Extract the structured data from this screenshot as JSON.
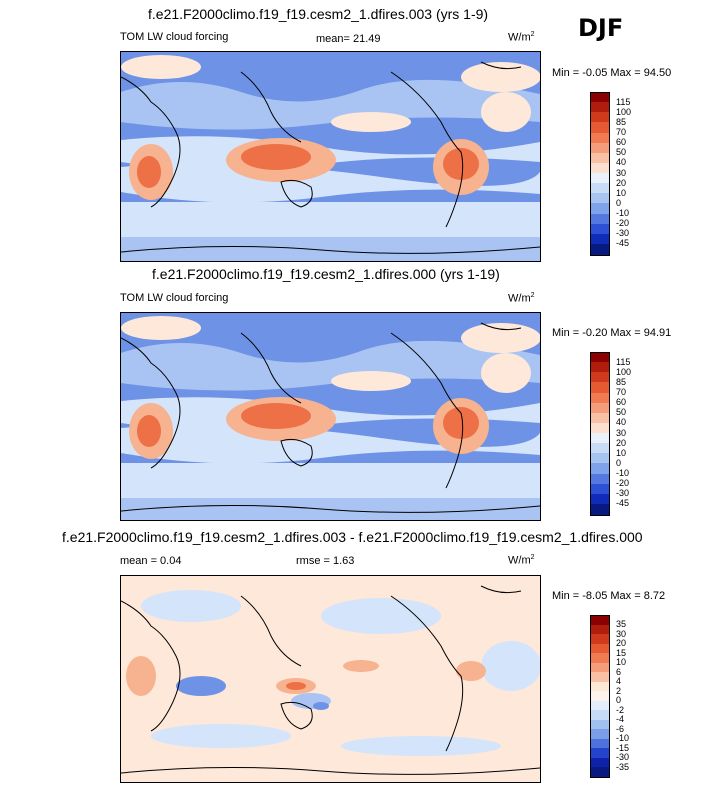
{
  "season_label": "DJF",
  "colors": {
    "blue_dark": "#1b3fd9",
    "blue_mid": "#6e93e6",
    "blue_light": "#a9c4f2",
    "blue_pale": "#d3e4fb",
    "cream": "#fde8da",
    "orange_light": "#f7b28f",
    "orange": "#ee7046",
    "red": "#d24a25"
  },
  "panels": [
    {
      "title": "f.e21.F2000climo.f19_f19.cesm2_1.dfires.003 (yrs 1-9)",
      "left_label": "TOM LW cloud forcing",
      "center_label": "mean=  21.49",
      "units": "W/m",
      "units_exp": "2",
      "minmax": "Min =  -0.05 Max =  94.50",
      "colorbar_labels": [
        "115",
        "100",
        "85",
        "70",
        "60",
        "50",
        "40",
        "30",
        "20",
        "10",
        "0",
        "-10",
        "-20",
        "-30",
        "-45"
      ],
      "colorbar_colors": [
        "#8b0000",
        "#b01d0c",
        "#d03a1c",
        "#e55a32",
        "#f07b52",
        "#f59d7a",
        "#f8c1a6",
        "#fbe0cf",
        "#eaf1fb",
        "#c9dcf7",
        "#a7c4f1",
        "#7fa3ea",
        "#5478df",
        "#2d50d4",
        "#0f2bb8",
        "#081a80"
      ]
    },
    {
      "title": "f.e21.F2000climo.f19_f19.cesm2_1.dfires.000 (yrs 1-19)",
      "left_label": "TOM LW cloud forcing",
      "center_label": "",
      "units": "W/m",
      "units_exp": "2",
      "minmax": "Min =  -0.20 Max =  94.91",
      "colorbar_labels": [
        "115",
        "100",
        "85",
        "70",
        "60",
        "50",
        "40",
        "30",
        "20",
        "10",
        "0",
        "-10",
        "-20",
        "-30",
        "-45"
      ],
      "colorbar_colors": [
        "#8b0000",
        "#b01d0c",
        "#d03a1c",
        "#e55a32",
        "#f07b52",
        "#f59d7a",
        "#f8c1a6",
        "#fbe0cf",
        "#eaf1fb",
        "#c9dcf7",
        "#a7c4f1",
        "#7fa3ea",
        "#5478df",
        "#2d50d4",
        "#0f2bb8",
        "#081a80"
      ]
    },
    {
      "title": "f.e21.F2000climo.f19_f19.cesm2_1.dfires.003 - f.e21.F2000climo.f19_f19.cesm2_1.dfires.000",
      "left_label": "mean =  0.04",
      "center_label": "rmse =  1.63",
      "units": "W/m",
      "units_exp": "2",
      "minmax": "Min =  -8.05 Max =   8.72",
      "colorbar_labels": [
        "35",
        "30",
        "20",
        "15",
        "10",
        "6",
        "4",
        "2",
        "0",
        "-2",
        "-4",
        "-6",
        "-10",
        "-15",
        "-30",
        "-35"
      ],
      "colorbar_colors": [
        "#8b0000",
        "#b01d0c",
        "#d03a1c",
        "#e55a32",
        "#f07b52",
        "#f59d7a",
        "#f8c1a6",
        "#fde7d6",
        "#fdf3ea",
        "#e3eefc",
        "#c6dbf6",
        "#a2c0ef",
        "#7a9de8",
        "#4f71dc",
        "#2343cc",
        "#0d22a8",
        "#081a80"
      ]
    }
  ]
}
